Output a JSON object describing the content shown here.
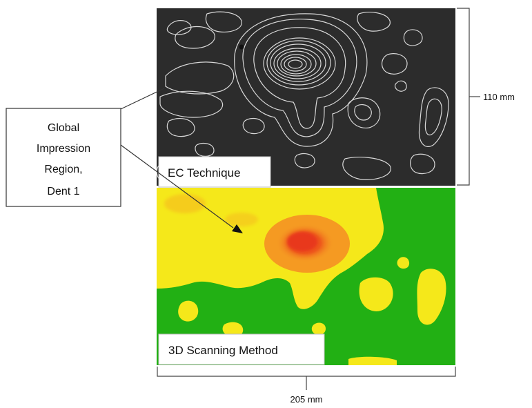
{
  "callout": {
    "line1": "Global",
    "line2": "Impression",
    "line3": "Region,",
    "line4": "Dent 1"
  },
  "panels": {
    "ec": {
      "label": "EC Technique",
      "background": "#2c2c2c",
      "contour_color": "#d9d9d9"
    },
    "scan": {
      "label": "3D Scanning Method",
      "background": "#22b014",
      "yellow": "#f5e81a",
      "orange": "#f59a22",
      "red": "#e8381b"
    }
  },
  "dimensions": {
    "height_label": "110 mm",
    "width_label": "205 mm"
  }
}
